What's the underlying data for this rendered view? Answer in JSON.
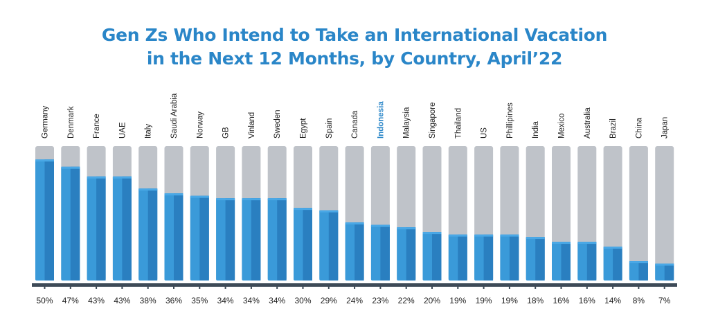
{
  "title": {
    "line1": "Gen Zs Who Intend to Take an International Vacation",
    "line2": "in the Next 12 Months, by Country, April’22"
  },
  "colors": {
    "title": "#2a86c8",
    "bar_fill": "#3a9ad9",
    "bar_fill_dark": "#2a7fc0",
    "track": "#bfc3c9",
    "baseline": "#3d4a57",
    "highlight_label": "#2a86c8",
    "text": "#222222"
  },
  "chart_data": {
    "type": "bar",
    "title": "Gen Zs Who Intend to Take an International Vacation in the Next 12 Months, by Country, April’22",
    "categories": [
      "Germany",
      "Denmark",
      "France",
      "UAE",
      "Italy",
      "Saudi Arabia",
      "Norway",
      "GB",
      "Vinland",
      "Sweden",
      "Egypt",
      "Spain",
      "Canada",
      "Indonesia",
      "Malaysia",
      "Singapore",
      "Thailand",
      "US",
      "Phillipines",
      "India",
      "Mexico",
      "Australia",
      "Brazil",
      "China",
      "Japan"
    ],
    "values": [
      50,
      47,
      43,
      43,
      38,
      36,
      35,
      34,
      34,
      34,
      30,
      29,
      24,
      23,
      22,
      20,
      19,
      19,
      19,
      18,
      16,
      16,
      14,
      8,
      7
    ],
    "value_labels": [
      "50%",
      "47%",
      "43%",
      "43%",
      "38%",
      "36%",
      "35%",
      "34%",
      "34%",
      "34%",
      "30%",
      "29%",
      "24%",
      "23%",
      "22%",
      "20%",
      "19%",
      "19%",
      "19%",
      "18%",
      "16%",
      "16%",
      "14%",
      "8%",
      "7%"
    ],
    "highlighted_category": "Indonesia",
    "ylim": [
      0,
      100
    ],
    "xlabel": "",
    "ylabel": "",
    "grid": false,
    "legend": "none"
  }
}
